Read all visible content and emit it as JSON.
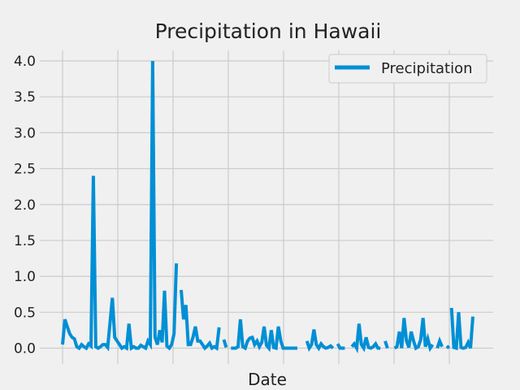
{
  "chart_data": {
    "type": "line",
    "title": "Precipitation in Hawaii",
    "xlabel": "Date",
    "ylabel": "",
    "ylim": [
      -0.2,
      4.1
    ],
    "yticks": [
      "0.0",
      "0.5",
      "1.0",
      "1.5",
      "2.0",
      "2.5",
      "3.0",
      "3.5",
      "4.0"
    ],
    "grid": true,
    "legend_position": "top-right",
    "colors": {
      "series": "#008fd5",
      "background": "#f0f0f0",
      "grid": "#cbcbcb"
    },
    "series": [
      {
        "name": "Precipitation",
        "segments": [
          [
            [
              0,
              0.05
            ],
            [
              1,
              0.4
            ],
            [
              2,
              0.3
            ],
            [
              3,
              0.2
            ],
            [
              4,
              0.15
            ],
            [
              5,
              0.13
            ],
            [
              6,
              0.02
            ],
            [
              7,
              0.0
            ],
            [
              8,
              0.05
            ],
            [
              9,
              0.02
            ],
            [
              10,
              0.0
            ],
            [
              11,
              0.06
            ],
            [
              12,
              0.03
            ],
            [
              13,
              2.4
            ],
            [
              14,
              0.02
            ],
            [
              15,
              0.0
            ],
            [
              16,
              0.02
            ],
            [
              17,
              0.05
            ],
            [
              18,
              0.05
            ],
            [
              19,
              0.01
            ],
            [
              20,
              0.35
            ],
            [
              21,
              0.7
            ],
            [
              22,
              0.15
            ],
            [
              23,
              0.1
            ],
            [
              24,
              0.05
            ],
            [
              25,
              0.0
            ],
            [
              26,
              0.02
            ],
            [
              27,
              0.0
            ],
            [
              28,
              0.34
            ],
            [
              29,
              0.0
            ],
            [
              30,
              0.02
            ],
            [
              31,
              0.0
            ],
            [
              32,
              0.0
            ],
            [
              33,
              0.04
            ],
            [
              34,
              0.02
            ],
            [
              35,
              0.0
            ],
            [
              36,
              0.1
            ],
            [
              37,
              0.05
            ],
            [
              38,
              4.0
            ],
            [
              39,
              0.15
            ],
            [
              40,
              0.05
            ],
            [
              41,
              0.25
            ],
            [
              42,
              0.08
            ],
            [
              43,
              0.8
            ],
            [
              44,
              0.03
            ],
            [
              45,
              0.0
            ],
            [
              46,
              0.05
            ],
            [
              47,
              0.2
            ],
            [
              48,
              1.18
            ]
          ],
          [
            [
              50,
              0.81
            ],
            [
              51,
              0.4
            ],
            [
              52,
              0.6
            ],
            [
              53,
              0.05
            ],
            [
              54,
              0.05
            ],
            [
              55,
              0.15
            ],
            [
              56,
              0.3
            ],
            [
              57,
              0.1
            ],
            [
              58,
              0.1
            ],
            [
              59,
              0.05
            ],
            [
              60,
              0.0
            ],
            [
              61,
              0.03
            ],
            [
              62,
              0.07
            ],
            [
              63,
              0.0
            ],
            [
              64,
              0.02
            ],
            [
              65,
              0.0
            ],
            [
              66,
              0.29
            ]
          ],
          [
            [
              68,
              0.12
            ],
            [
              69,
              0.01
            ]
          ],
          [
            [
              71,
              0.0
            ],
            [
              72,
              0.0
            ],
            [
              73,
              0.0
            ],
            [
              74,
              0.02
            ],
            [
              75,
              0.4
            ],
            [
              76,
              0.02
            ],
            [
              77,
              0.0
            ],
            [
              78,
              0.1
            ],
            [
              79,
              0.14
            ],
            [
              80,
              0.15
            ],
            [
              81,
              0.05
            ],
            [
              82,
              0.1
            ],
            [
              83,
              0.02
            ],
            [
              84,
              0.08
            ],
            [
              85,
              0.3
            ],
            [
              86,
              0.04
            ],
            [
              87,
              0.0
            ],
            [
              88,
              0.25
            ],
            [
              89,
              0.01
            ],
            [
              90,
              0.0
            ],
            [
              91,
              0.3
            ],
            [
              92,
              0.1
            ],
            [
              93,
              0.0
            ],
            [
              94,
              0.0
            ],
            [
              95,
              0.0
            ],
            [
              96,
              0.0
            ],
            [
              97,
              0.0
            ],
            [
              98,
              0.0
            ],
            [
              99,
              0.0
            ]
          ],
          [
            [
              103,
              0.1
            ],
            [
              104,
              0.0
            ],
            [
              105,
              0.05
            ],
            [
              106,
              0.26
            ],
            [
              107,
              0.05
            ],
            [
              108,
              0.0
            ],
            [
              109,
              0.06
            ],
            [
              110,
              0.02
            ],
            [
              111,
              0.0
            ],
            [
              112,
              0.01
            ],
            [
              113,
              0.03
            ],
            [
              114,
              0.0
            ]
          ],
          [
            [
              116,
              0.06
            ],
            [
              117,
              0.0
            ],
            [
              118,
              0.0
            ],
            [
              119,
              0.0
            ]
          ],
          [
            [
              122,
              0.02
            ],
            [
              123,
              0.06
            ],
            [
              124,
              0.0
            ],
            [
              125,
              0.34
            ],
            [
              126,
              0.05
            ],
            [
              127,
              0.0
            ],
            [
              128,
              0.15
            ],
            [
              129,
              0.01
            ],
            [
              130,
              0.0
            ],
            [
              131,
              0.02
            ],
            [
              132,
              0.06
            ],
            [
              133,
              0.0
            ],
            [
              134,
              0.0
            ]
          ],
          [
            [
              136,
              0.1
            ],
            [
              137,
              0.0
            ]
          ],
          [
            [
              140,
              0.0
            ],
            [
              141,
              0.02
            ],
            [
              142,
              0.23
            ],
            [
              143,
              0.0
            ],
            [
              144,
              0.42
            ],
            [
              145,
              0.1
            ],
            [
              146,
              0.01
            ],
            [
              147,
              0.23
            ],
            [
              148,
              0.1
            ],
            [
              149,
              0.0
            ],
            [
              150,
              0.02
            ],
            [
              151,
              0.12
            ],
            [
              152,
              0.42
            ],
            [
              153,
              0.02
            ],
            [
              154,
              0.13
            ],
            [
              155,
              0.0
            ],
            [
              156,
              0.05
            ]
          ],
          [
            [
              158,
              0.0
            ],
            [
              159,
              0.1
            ],
            [
              160,
              0.02
            ]
          ],
          [
            [
              162,
              0.03
            ],
            [
              163,
              0.0
            ]
          ],
          [
            [
              164,
              0.56
            ],
            [
              165,
              0.01
            ],
            [
              166,
              0.0
            ],
            [
              167,
              0.5
            ],
            [
              168,
              0.01
            ],
            [
              169,
              0.0
            ],
            [
              170,
              0.01
            ],
            [
              171,
              0.08
            ],
            [
              172,
              0.0
            ],
            [
              173,
              0.44
            ]
          ]
        ]
      }
    ]
  }
}
